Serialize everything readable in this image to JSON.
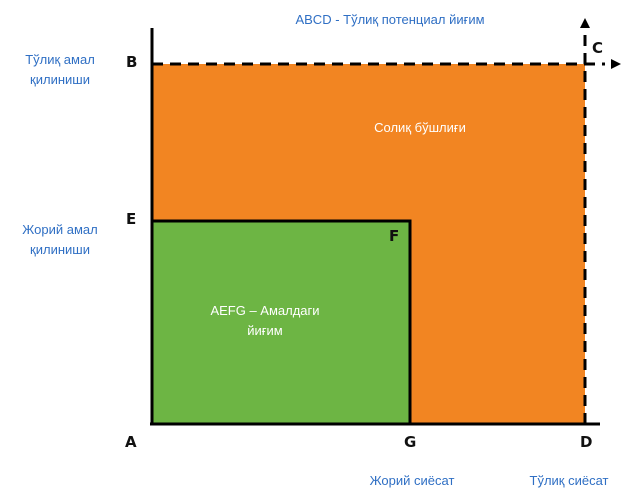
{
  "title": "ABCD - Тўлиқ потенциал йиғим",
  "y_labels": {
    "full": [
      "Тўлиқ амал",
      "қилиниши"
    ],
    "current": [
      "Жорий амал",
      "қилиниши"
    ]
  },
  "x_labels": {
    "current": "Жорий сиёсат",
    "full": "Тўлиқ сиёсат"
  },
  "points": {
    "A": "A",
    "B": "B",
    "C": "C",
    "D": "D",
    "E": "E",
    "F": "F",
    "G": "G"
  },
  "regions": {
    "gap": "Солиқ бўшлиғи",
    "actual": [
      "AEFG – Амалдаги",
      "йиғим"
    ]
  },
  "colors": {
    "gap": "#f28522",
    "actual": "#6db544",
    "text_blue": "#2f6fc4"
  }
}
